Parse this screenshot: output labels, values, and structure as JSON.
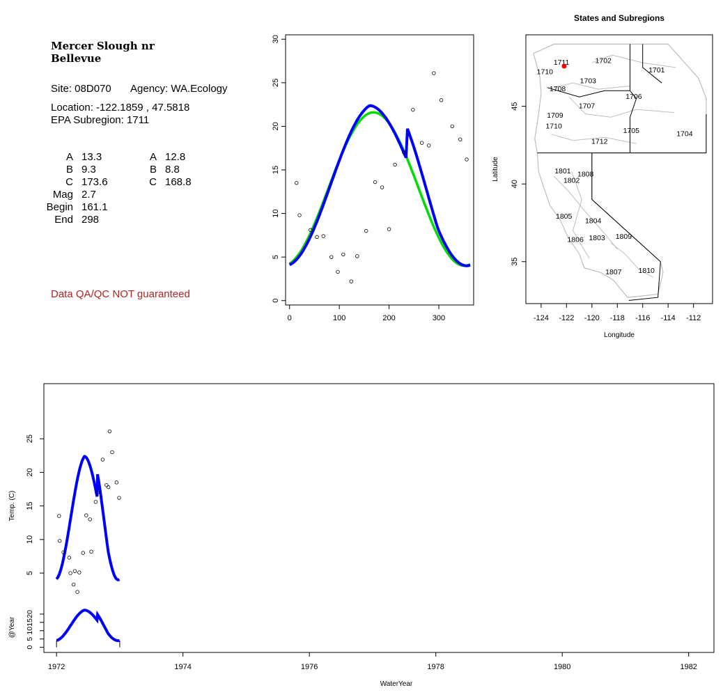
{
  "site": {
    "title_line1": "Mercer Slough nr",
    "title_line2": "Bellevue",
    "site_label": "Site: 08D070",
    "agency_label": "Agency: WA.Ecology",
    "location_label": "Location: -122.1859 , 47.5818",
    "subregion_label": "EPA Subregion: 1711",
    "params_left": [
      {
        "name": "A",
        "value": "13.3"
      },
      {
        "name": "B",
        "value": "9.3"
      },
      {
        "name": "C",
        "value": "173.6"
      },
      {
        "name": "Mag",
        "value": "2.7"
      },
      {
        "name": "Begin",
        "value": "161.1"
      },
      {
        "name": "End",
        "value": "298"
      }
    ],
    "params_right": [
      {
        "name": "A",
        "value": "12.8"
      },
      {
        "name": "B",
        "value": "8.8"
      },
      {
        "name": "C",
        "value": "168.8"
      }
    ],
    "qa_note": "Data QA/QC NOT guaranteed"
  },
  "map": {
    "title": "States and Subregions",
    "xlabel": "Longitude",
    "ylabel": "Latitude",
    "xlim": [
      -125.2,
      -110.5
    ],
    "ylim": [
      32.3,
      49.6
    ],
    "xticks": [
      -124,
      -122,
      -120,
      -118,
      -116,
      -114,
      -112
    ],
    "yticks": [
      35,
      40,
      45
    ],
    "site_point": {
      "lon": -122.1859,
      "lat": 47.5818,
      "color": "#ff0000"
    },
    "regions": [
      {
        "label": "1702",
        "lon": -119.1,
        "lat": 47.9
      },
      {
        "label": "1701",
        "lon": -114.9,
        "lat": 47.3
      },
      {
        "label": "1710",
        "lon": -123.7,
        "lat": 47.2
      },
      {
        "label": "1711",
        "lon": -122.4,
        "lat": 47.8
      },
      {
        "label": "1703",
        "lon": -120.3,
        "lat": 46.6
      },
      {
        "label": "1708",
        "lon": -122.7,
        "lat": 46.1
      },
      {
        "label": "1706",
        "lon": -116.7,
        "lat": 45.6
      },
      {
        "label": "1707",
        "lon": -120.4,
        "lat": 45.0
      },
      {
        "label": "1709",
        "lon": -122.9,
        "lat": 44.4
      },
      {
        "label": "1710",
        "lon": -123.0,
        "lat": 43.7
      },
      {
        "label": "1705",
        "lon": -116.9,
        "lat": 43.4
      },
      {
        "label": "1704",
        "lon": -112.7,
        "lat": 43.2
      },
      {
        "label": "1712",
        "lon": -119.4,
        "lat": 42.7
      },
      {
        "label": "1801",
        "lon": -122.3,
        "lat": 40.8
      },
      {
        "label": "1808",
        "lon": -120.5,
        "lat": 40.6
      },
      {
        "label": "1802",
        "lon": -121.6,
        "lat": 40.2
      },
      {
        "label": "1805",
        "lon": -122.2,
        "lat": 37.9
      },
      {
        "label": "1804",
        "lon": -119.9,
        "lat": 37.6
      },
      {
        "label": "1806",
        "lon": -121.3,
        "lat": 36.4
      },
      {
        "label": "1803",
        "lon": -119.6,
        "lat": 36.5
      },
      {
        "label": "1809",
        "lon": -117.5,
        "lat": 36.6
      },
      {
        "label": "1810",
        "lon": -115.7,
        "lat": 34.4
      },
      {
        "label": "1807",
        "lon": -118.3,
        "lat": 34.3
      }
    ],
    "colors": {
      "state": "#000000",
      "subregion": "#bebebe"
    }
  },
  "chart_data": [
    {
      "type": "scatter",
      "id": "seasonal",
      "xlim": [
        -8,
        370
      ],
      "ylim": [
        -0.5,
        30.5
      ],
      "xticks": [
        0,
        100,
        200,
        300
      ],
      "yticks": [
        0,
        5,
        10,
        15,
        20,
        25,
        30
      ],
      "points": {
        "x": [
          14,
          20,
          42,
          55,
          68,
          84,
          97,
          108,
          124,
          136,
          154,
          172,
          186,
          200,
          212,
          230,
          248,
          266,
          280,
          290,
          305,
          327,
          343,
          356
        ],
        "y": [
          13.5,
          9.8,
          8.1,
          7.3,
          7.4,
          5.0,
          3.3,
          5.3,
          2.2,
          5.1,
          8.0,
          13.6,
          13.0,
          8.2,
          15.6,
          17.0,
          21.9,
          18.1,
          17.8,
          26.1,
          23.0,
          20.0,
          18.5,
          16.2
        ]
      },
      "series": [
        {
          "name": "",
          "color": "#00dd00",
          "model": {
            "A": 12.8,
            "B": 8.8,
            "C": 168.8
          }
        },
        {
          "name": "",
          "color": "#0000ff",
          "model": {
            "A": 13.3,
            "B": 9.3,
            "C": 173.6,
            "Mag": 2.7,
            "Begin": 161.1,
            "End": 298
          }
        }
      ]
    },
    {
      "type": "scatter",
      "id": "timeseries",
      "xlabel": "WaterYear",
      "ylabel": "Temp. (C)",
      "xlim": [
        1971.8,
        1982.4
      ],
      "ylim": [
        2.0,
        30.2
      ],
      "xticks": [
        1972,
        1974,
        1976,
        1978,
        1980,
        1982
      ],
      "yticks": [
        5,
        10,
        15,
        20,
        25
      ],
      "points": {
        "x": [
          1972.04,
          1972.05,
          1972.11,
          1972.2,
          1972.22,
          1972.27,
          1972.29,
          1972.33,
          1972.36,
          1972.42,
          1972.47,
          1972.53,
          1972.55,
          1972.62,
          1972.65,
          1972.73,
          1972.79,
          1972.82,
          1972.84,
          1972.88,
          1972.95,
          1972.99
        ],
        "y": [
          13.5,
          9.8,
          8.1,
          7.3,
          5.0,
          3.3,
          5.3,
          2.2,
          5.1,
          8.0,
          13.6,
          13.0,
          8.2,
          15.6,
          17.0,
          21.9,
          18.1,
          17.8,
          26.1,
          23.0,
          18.5,
          16.2
        ]
      },
      "series": [
        {
          "name": "",
          "color": "#0000ff"
        }
      ]
    },
    {
      "type": "line",
      "id": "annual",
      "ylabel": "@Year",
      "xlim": [
        1971.8,
        1982.4
      ],
      "ylim": [
        -1,
        25
      ],
      "yticks": [
        0,
        5,
        10,
        15,
        20
      ],
      "series": [
        {
          "name": "",
          "color": "#0000ff"
        }
      ]
    }
  ]
}
